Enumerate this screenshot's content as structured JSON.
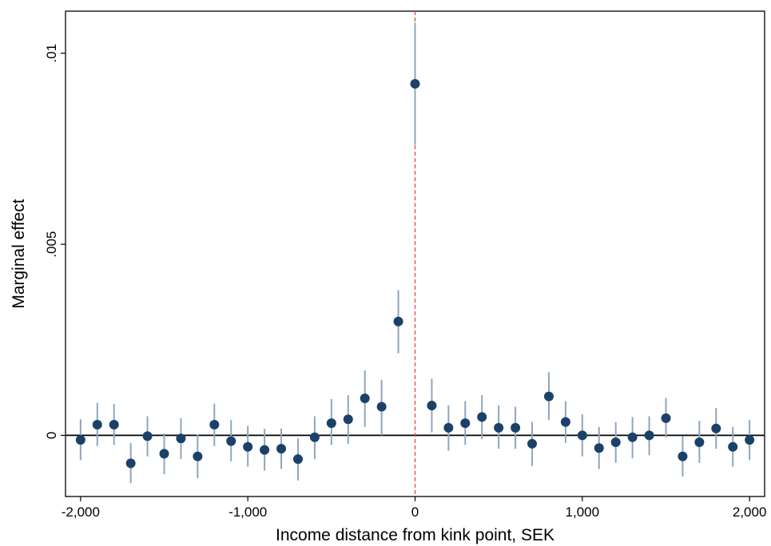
{
  "chart_data": {
    "type": "scatter",
    "xlabel": "Income distance from kink point, SEK",
    "ylabel": "Marginal effect",
    "xlim": [
      -2090,
      2090
    ],
    "ylim": [
      -0.0016,
      0.0111
    ],
    "x_ticks": [
      {
        "value": -2000,
        "label": "-2,000"
      },
      {
        "value": -1000,
        "label": "-1,000"
      },
      {
        "value": 0,
        "label": "0"
      },
      {
        "value": 1000,
        "label": "1,000"
      },
      {
        "value": 2000,
        "label": "2,000"
      }
    ],
    "y_ticks": [
      {
        "value": 0,
        "label": "0"
      },
      {
        "value": 0.005,
        "label": ".005"
      },
      {
        "value": 0.01,
        "label": ".01"
      }
    ],
    "reference_lines": {
      "horizontal_y": 0,
      "vertical_x": 0,
      "vertical_color": "#e8464b"
    },
    "colors": {
      "point": "#1b4168",
      "error_bar": "#8fa6bd"
    },
    "points": [
      {
        "x": -2000,
        "y": -0.00012,
        "lo": -0.00065,
        "hi": 0.00042
      },
      {
        "x": -1900,
        "y": 0.00028,
        "lo": -0.00028,
        "hi": 0.00085
      },
      {
        "x": -1800,
        "y": 0.00028,
        "lo": -0.00025,
        "hi": 0.00082
      },
      {
        "x": -1700,
        "y": -0.00073,
        "lo": -0.00125,
        "hi": -0.0002
      },
      {
        "x": -1600,
        "y": -2e-05,
        "lo": -0.00055,
        "hi": 0.0005
      },
      {
        "x": -1500,
        "y": -0.00048,
        "lo": -0.00102,
        "hi": 5e-05
      },
      {
        "x": -1400,
        "y": -8e-05,
        "lo": -0.00062,
        "hi": 0.00045
      },
      {
        "x": -1300,
        "y": -0.00055,
        "lo": -0.00112,
        "hi": 2e-05
      },
      {
        "x": -1200,
        "y": 0.00028,
        "lo": -0.00028,
        "hi": 0.00083
      },
      {
        "x": -1100,
        "y": -0.00015,
        "lo": -0.00068,
        "hi": 0.0004
      },
      {
        "x": -1000,
        "y": -0.0003,
        "lo": -0.00082,
        "hi": 0.00025
      },
      {
        "x": -900,
        "y": -0.00038,
        "lo": -0.00092,
        "hi": 0.00017
      },
      {
        "x": -800,
        "y": -0.00035,
        "lo": -0.00088,
        "hi": 0.00018
      },
      {
        "x": -700,
        "y": -0.00062,
        "lo": -0.00118,
        "hi": -8e-05
      },
      {
        "x": -600,
        "y": -5e-05,
        "lo": -0.00062,
        "hi": 0.0005
      },
      {
        "x": -500,
        "y": 0.00032,
        "lo": -0.00025,
        "hi": 0.00095
      },
      {
        "x": -400,
        "y": 0.00042,
        "lo": -0.00022,
        "hi": 0.00105
      },
      {
        "x": -300,
        "y": 0.00097,
        "lo": 0.00022,
        "hi": 0.0017
      },
      {
        "x": -200,
        "y": 0.00075,
        "lo": 0.0,
        "hi": 0.00145
      },
      {
        "x": -100,
        "y": 0.00298,
        "lo": 0.00215,
        "hi": 0.0038
      },
      {
        "x": 0,
        "y": 0.0092,
        "lo": 0.0076,
        "hi": 0.0108
      },
      {
        "x": 100,
        "y": 0.00078,
        "lo": 8e-05,
        "hi": 0.00148
      },
      {
        "x": 200,
        "y": 0.0002,
        "lo": -0.0004,
        "hi": 0.00078
      },
      {
        "x": 300,
        "y": 0.00032,
        "lo": -0.00025,
        "hi": 0.0009
      },
      {
        "x": 400,
        "y": 0.00048,
        "lo": -0.0001,
        "hi": 0.00105
      },
      {
        "x": 500,
        "y": 0.0002,
        "lo": -0.00035,
        "hi": 0.00078
      },
      {
        "x": 600,
        "y": 0.0002,
        "lo": -0.00035,
        "hi": 0.00075
      },
      {
        "x": 700,
        "y": -0.00022,
        "lo": -0.0008,
        "hi": 0.00035
      },
      {
        "x": 800,
        "y": 0.00102,
        "lo": 0.0004,
        "hi": 0.00165
      },
      {
        "x": 900,
        "y": 0.00035,
        "lo": -0.0002,
        "hi": 0.0009
      },
      {
        "x": 1000,
        "y": 0.0,
        "lo": -0.00055,
        "hi": 0.00055
      },
      {
        "x": 1100,
        "y": -0.00033,
        "lo": -0.00088,
        "hi": 0.00022
      },
      {
        "x": 1200,
        "y": -0.00018,
        "lo": -0.00072,
        "hi": 0.00035
      },
      {
        "x": 1300,
        "y": -5e-05,
        "lo": -0.0006,
        "hi": 0.00048
      },
      {
        "x": 1400,
        "y": 0.0,
        "lo": -0.00052,
        "hi": 0.0005
      },
      {
        "x": 1500,
        "y": 0.00045,
        "lo": -5e-05,
        "hi": 0.00098
      },
      {
        "x": 1600,
        "y": -0.00055,
        "lo": -0.00108,
        "hi": -2e-05
      },
      {
        "x": 1700,
        "y": -0.00018,
        "lo": -0.00072,
        "hi": 0.00038
      },
      {
        "x": 1800,
        "y": 0.00018,
        "lo": -0.00035,
        "hi": 0.00072
      },
      {
        "x": 1900,
        "y": -0.0003,
        "lo": -0.00082,
        "hi": 0.00022
      },
      {
        "x": 2000,
        "y": -0.00012,
        "lo": -0.00065,
        "hi": 0.0004
      }
    ]
  }
}
